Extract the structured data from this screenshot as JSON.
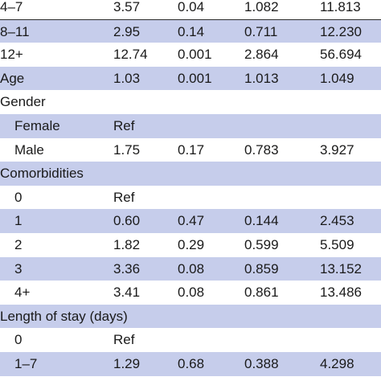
{
  "table": {
    "rows": [
      {
        "label": "4–7",
        "or": "3.57",
        "p": "0.04",
        "ci_low": "1.082",
        "ci_high": "11.813",
        "shaded": false,
        "indent": false
      },
      {
        "label": "8–11",
        "or": "2.95",
        "p": "0.14",
        "ci_low": "0.711",
        "ci_high": "12.230",
        "shaded": true,
        "indent": false
      },
      {
        "label": "12+",
        "or": "12.74",
        "p": "0.001",
        "ci_low": "2.864",
        "ci_high": "56.694",
        "shaded": false,
        "indent": false
      },
      {
        "label": "Age",
        "or": "1.03",
        "p": "0.001",
        "ci_low": "1.013",
        "ci_high": "1.049",
        "shaded": true,
        "indent": false
      },
      {
        "label": "Gender",
        "or": "",
        "p": "",
        "ci_low": "",
        "ci_high": "",
        "shaded": false,
        "indent": false
      },
      {
        "label": "Female",
        "or": "Ref",
        "p": "",
        "ci_low": "",
        "ci_high": "",
        "shaded": true,
        "indent": true
      },
      {
        "label": "Male",
        "or": "1.75",
        "p": "0.17",
        "ci_low": "0.783",
        "ci_high": "3.927",
        "shaded": false,
        "indent": true
      },
      {
        "label": "Comorbidities",
        "or": "",
        "p": "",
        "ci_low": "",
        "ci_high": "",
        "shaded": true,
        "indent": false
      },
      {
        "label": "0",
        "or": "Ref",
        "p": "",
        "ci_low": "",
        "ci_high": "",
        "shaded": false,
        "indent": true
      },
      {
        "label": "1",
        "or": "0.60",
        "p": "0.47",
        "ci_low": "0.144",
        "ci_high": "2.453",
        "shaded": true,
        "indent": true
      },
      {
        "label": "2",
        "or": "1.82",
        "p": "0.29",
        "ci_low": "0.599",
        "ci_high": "5.509",
        "shaded": false,
        "indent": true
      },
      {
        "label": "3",
        "or": "3.36",
        "p": "0.08",
        "ci_low": "0.859",
        "ci_high": "13.152",
        "shaded": true,
        "indent": true
      },
      {
        "label": "4+",
        "or": "3.41",
        "p": "0.08",
        "ci_low": "0.861",
        "ci_high": "13.486",
        "shaded": false,
        "indent": true
      },
      {
        "label": "Length of stay (days)",
        "or": "",
        "p": "",
        "ci_low": "",
        "ci_high": "",
        "shaded": true,
        "indent": false
      },
      {
        "label": "0",
        "or": "Ref",
        "p": "",
        "ci_low": "",
        "ci_high": "",
        "shaded": false,
        "indent": true
      },
      {
        "label": "1–7",
        "or": "1.29",
        "p": "0.68",
        "ci_low": "0.388",
        "ci_high": "4.298",
        "shaded": true,
        "indent": true
      }
    ]
  }
}
